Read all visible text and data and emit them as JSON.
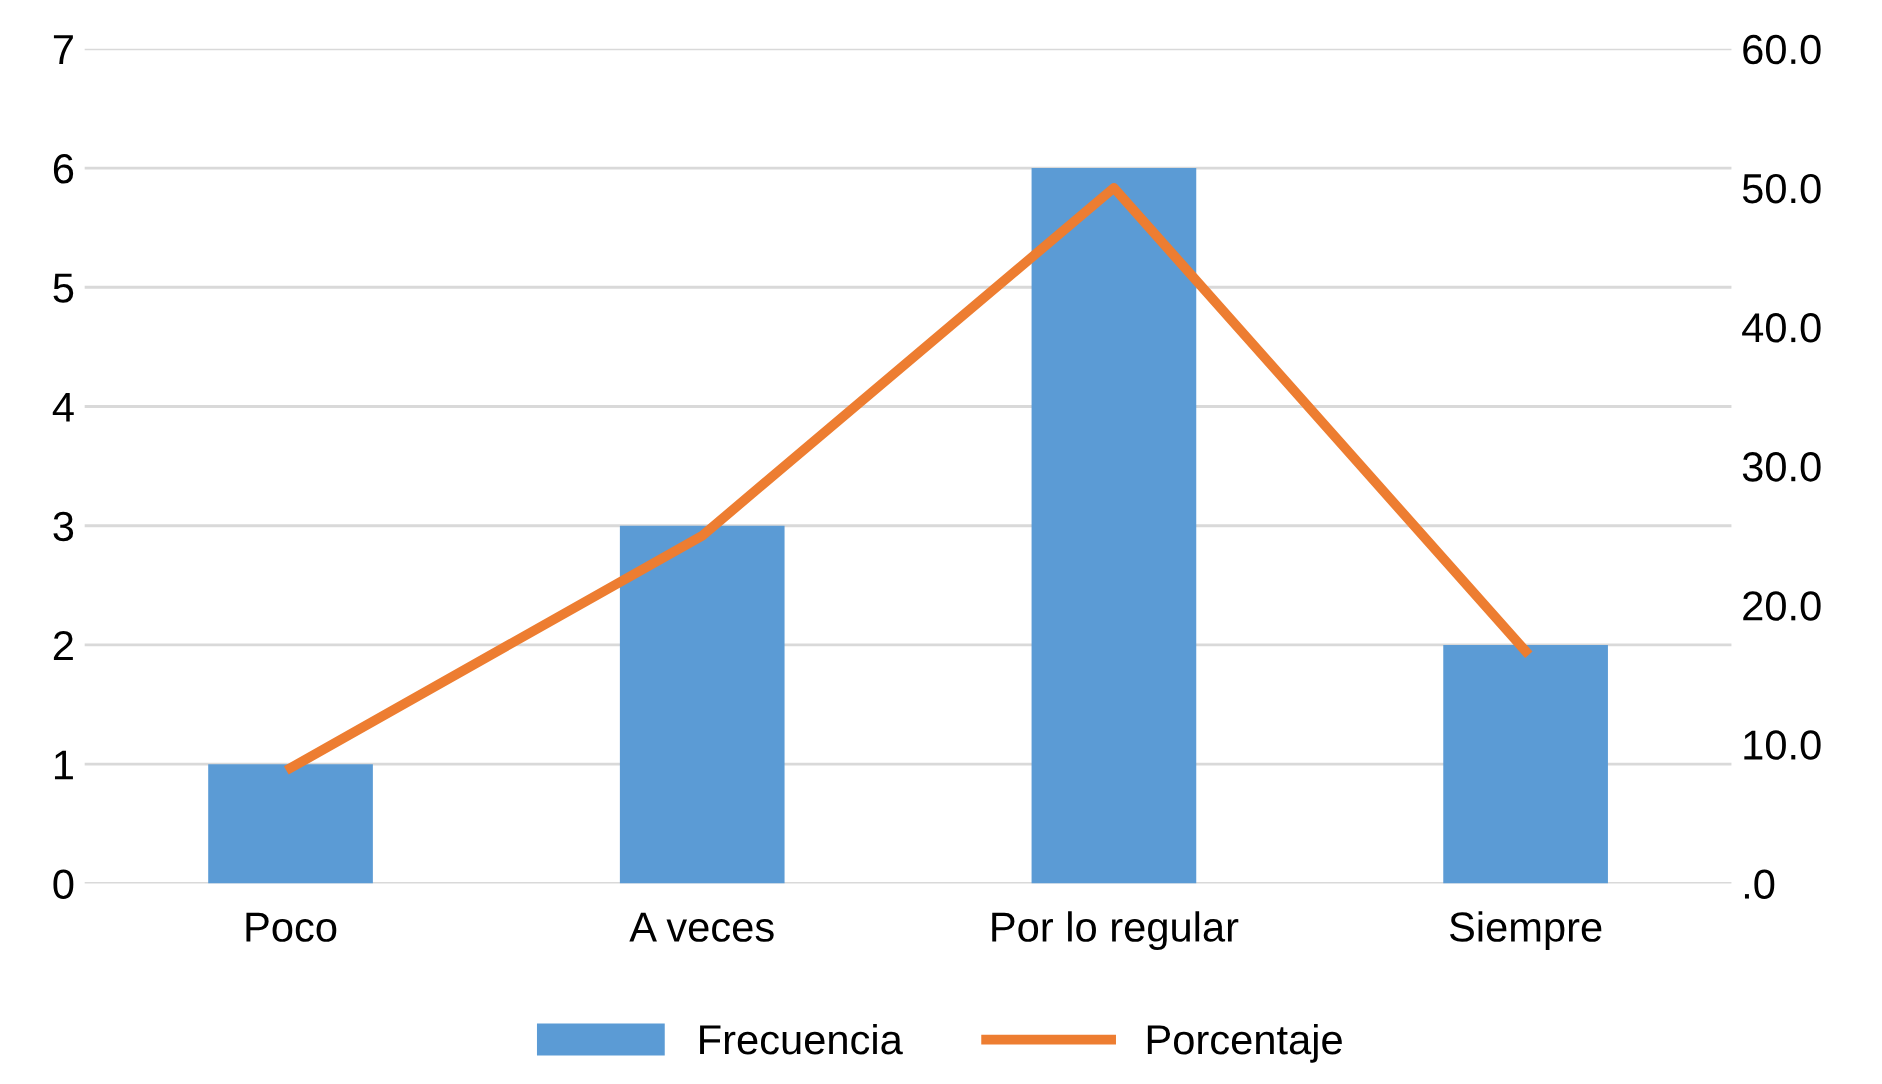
{
  "chart_data": {
    "type": "bar",
    "categories": [
      "Poco",
      "A veces",
      "Por lo regular",
      "Siempre"
    ],
    "series": [
      {
        "name": "Frecuencia",
        "color": "#5b9bd5",
        "values": [
          1,
          3,
          6,
          2
        ]
      },
      {
        "name": "Porcentaje",
        "type": "line",
        "axis": "y2",
        "color": "#ed7d31",
        "values": [
          8.3,
          25.0,
          50.0,
          16.7
        ]
      }
    ],
    "ylim": [
      0,
      7
    ],
    "yticks": [
      0,
      1,
      2,
      3,
      4,
      5,
      6,
      7
    ],
    "y2lim": [
      0,
      60
    ],
    "y2ticks": [
      {
        "value": 0,
        "label": ".0"
      },
      {
        "value": 10,
        "label": "10.0"
      },
      {
        "value": 20,
        "label": "20.0"
      },
      {
        "value": 30,
        "label": "30.0"
      },
      {
        "value": 40,
        "label": "40.0"
      },
      {
        "value": 50,
        "label": "50.0"
      },
      {
        "value": 60,
        "label": "60.0"
      }
    ],
    "grid": "y",
    "legend": "bottom",
    "marker": "none",
    "line_style": "solid"
  }
}
